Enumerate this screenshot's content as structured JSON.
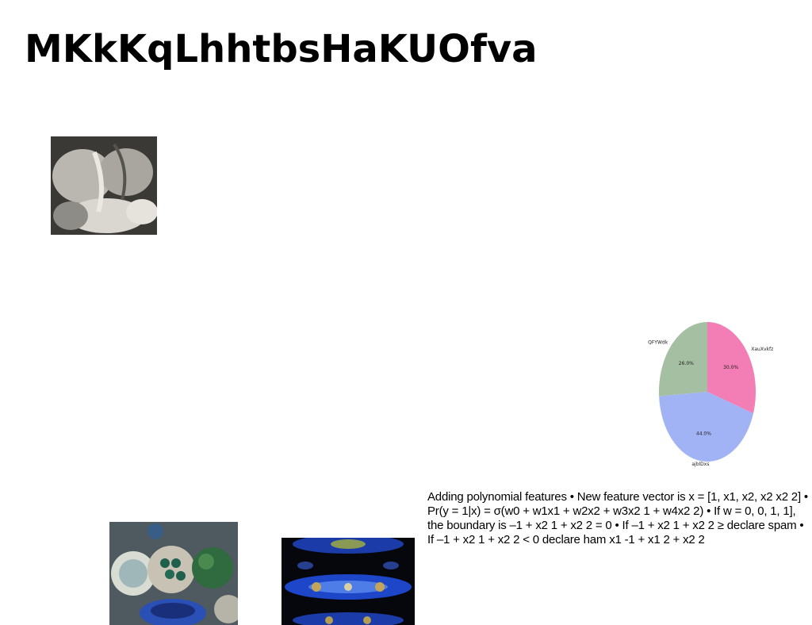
{
  "title": "MKkKqLhhtbsHaKUOfva",
  "paragraph": "Adding polynomial features • New feature vector is x = [1, x1, x2, x2 x2 2] • Pr(y = 1|x) = σ(w0 + w1x1 + w2x2 + w3x2 1 + w4x2 2) • If w = 0, 0, 1, 1], the boundary is –1 + x2 1 + x2 2 = 0 • If –1 + x2 1 + x2 2 ≥ declare spam • If –1 + x2 1 + x2 2 < 0 declare ham x1 -1 + x1 2 + x2 2",
  "chart_data": {
    "type": "pie",
    "slices": [
      {
        "label": "XauXvkfz",
        "percent": 30.0,
        "value_label": "30.0%",
        "color": "#f27eb5"
      },
      {
        "label": "ajblDxs",
        "percent": 44.0,
        "value_label": "44.0%",
        "color": "#a2b3f5"
      },
      {
        "label": "QFYWdk",
        "percent": 26.0,
        "value_label": "26.0%",
        "color": "#a4bfa1"
      }
    ],
    "start_angle": "top, clockwise"
  },
  "colors": {
    "background": "#ffffff",
    "text": "#000000"
  }
}
